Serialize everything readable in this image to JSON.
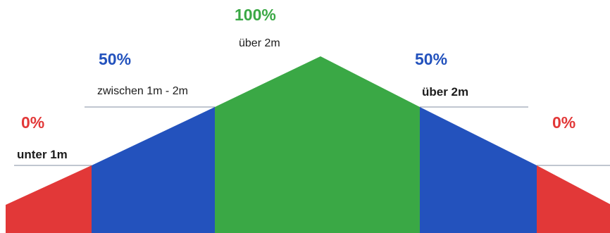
{
  "colors": {
    "red": "#e23838",
    "blue": "#2352bd",
    "green": "#3aa845",
    "line": "#9aa3b5"
  },
  "zones": [
    {
      "id": "left-low",
      "percent": "0%",
      "label": "unter 1m",
      "color": "red"
    },
    {
      "id": "left-mid",
      "percent": "50%",
      "label": "zwischen 1m - 2m",
      "color": "blue"
    },
    {
      "id": "center",
      "percent": "100%",
      "label": "über 2m",
      "color": "green"
    },
    {
      "id": "right-mid",
      "percent": "50%",
      "label": "über 2m",
      "color": "blue"
    },
    {
      "id": "right-low",
      "percent": "0%",
      "label": "",
      "color": "red"
    }
  ]
}
